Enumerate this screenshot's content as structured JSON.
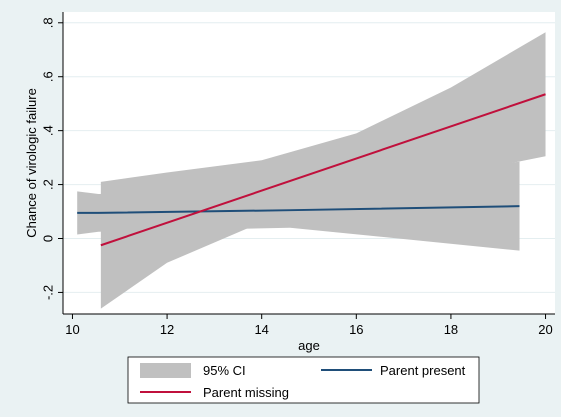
{
  "chart_data": {
    "type": "line",
    "title": "",
    "xlabel": "age",
    "ylabel": "Chance of virologic failure",
    "xlim": [
      9.8,
      20.2
    ],
    "ylim": [
      -0.28,
      0.84
    ],
    "x_ticks": [
      10,
      12,
      14,
      16,
      18,
      20
    ],
    "y_ticks": [
      -0.2,
      0,
      0.2,
      0.4,
      0.6,
      0.8
    ],
    "x_tick_labels": [
      "10",
      "12",
      "14",
      "16",
      "18",
      "20"
    ],
    "y_tick_labels": [
      "-.2",
      "0",
      ".2",
      ".4",
      ".6",
      ".8"
    ],
    "grid": true,
    "legend_position": "bottom",
    "legend": {
      "ci_label": "95% CI",
      "present_label": "Parent present",
      "missing_label": "Parent missing"
    },
    "series": [
      {
        "name": "Parent present",
        "color": "#1f4e79",
        "x": [
          10.1,
          10.55,
          14.6,
          19.45
        ],
        "y": [
          0.095,
          0.095,
          0.105,
          0.12
        ],
        "ci_x": [
          10.1,
          10.55,
          14.6,
          19.45
        ],
        "ci_lower": [
          0.015,
          0.025,
          0.04,
          -0.045
        ],
        "ci_upper": [
          0.175,
          0.165,
          0.17,
          0.285
        ]
      },
      {
        "name": "Parent missing",
        "color": "#c0103c",
        "x": [
          10.6,
          20.0
        ],
        "y": [
          -0.025,
          0.535
        ],
        "ci_x": [
          10.6,
          12,
          14,
          16,
          18,
          20
        ],
        "ci_lower": [
          -0.26,
          -0.09,
          0.06,
          0.165,
          0.235,
          0.305
        ],
        "ci_upper": [
          0.21,
          0.245,
          0.29,
          0.39,
          0.56,
          0.765
        ]
      }
    ],
    "ci_color": "#c0c0c0"
  }
}
